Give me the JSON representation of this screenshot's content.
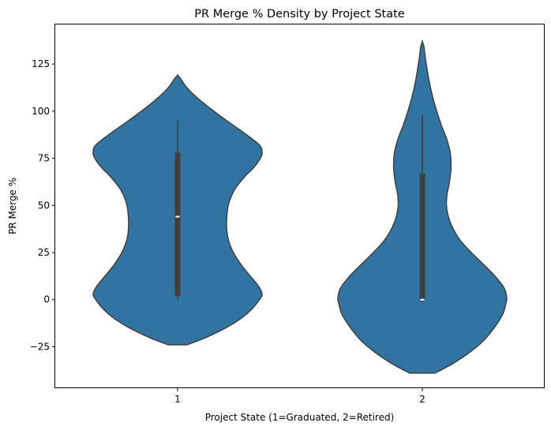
{
  "chart_data": {
    "type": "violin",
    "title": "PR Merge % Density by Project State",
    "xlabel": "Project State (1=Graduated, 2=Retired)",
    "ylabel": "PR Merge %",
    "categories": [
      "1",
      "2"
    ],
    "ylim": [
      -47,
      146
    ],
    "yticks": [
      -25,
      0,
      25,
      50,
      75,
      100,
      125
    ],
    "ytick_labels": [
      "−25",
      "0",
      "25",
      "50",
      "75",
      "100",
      "125"
    ],
    "grid": false,
    "violin_color": "#3274a1",
    "edge_color": "#3f3f3f",
    "violins": [
      {
        "category": "1",
        "y_range": [
          -24,
          119
        ],
        "min": 0,
        "q1": 2,
        "median": 44,
        "q3": 78,
        "max": 95,
        "density_profile": [
          [
            -24,
            0.11
          ],
          [
            -20,
            0.34
          ],
          [
            -15,
            0.57
          ],
          [
            -10,
            0.75
          ],
          [
            -5,
            0.88
          ],
          [
            0,
            0.97
          ],
          [
            3,
            1.0
          ],
          [
            7,
            0.96
          ],
          [
            12,
            0.87
          ],
          [
            18,
            0.76
          ],
          [
            25,
            0.66
          ],
          [
            32,
            0.6
          ],
          [
            40,
            0.58
          ],
          [
            50,
            0.6
          ],
          [
            58,
            0.67
          ],
          [
            65,
            0.79
          ],
          [
            70,
            0.9
          ],
          [
            75,
            0.98
          ],
          [
            78,
            1.0
          ],
          [
            82,
            0.97
          ],
          [
            88,
            0.8
          ],
          [
            95,
            0.58
          ],
          [
            102,
            0.37
          ],
          [
            108,
            0.21
          ],
          [
            113,
            0.1
          ],
          [
            117,
            0.04
          ],
          [
            119,
            0.0
          ]
        ]
      },
      {
        "category": "2",
        "y_range": [
          -39,
          137
        ],
        "min": -1,
        "q1": 0,
        "median": 0,
        "q3": 67,
        "max": 98,
        "density_profile": [
          [
            -39,
            0.15
          ],
          [
            -34,
            0.36
          ],
          [
            -28,
            0.56
          ],
          [
            -22,
            0.72
          ],
          [
            -15,
            0.85
          ],
          [
            -8,
            0.95
          ],
          [
            -2,
            0.99
          ],
          [
            1,
            1.0
          ],
          [
            6,
            0.97
          ],
          [
            12,
            0.87
          ],
          [
            18,
            0.74
          ],
          [
            25,
            0.58
          ],
          [
            32,
            0.44
          ],
          [
            40,
            0.34
          ],
          [
            48,
            0.29
          ],
          [
            55,
            0.29
          ],
          [
            62,
            0.32
          ],
          [
            70,
            0.34
          ],
          [
            78,
            0.33
          ],
          [
            85,
            0.29
          ],
          [
            92,
            0.23
          ],
          [
            100,
            0.17
          ],
          [
            108,
            0.12
          ],
          [
            116,
            0.08
          ],
          [
            124,
            0.05
          ],
          [
            130,
            0.03
          ],
          [
            134,
            0.02
          ],
          [
            137,
            0.0
          ]
        ]
      }
    ]
  }
}
